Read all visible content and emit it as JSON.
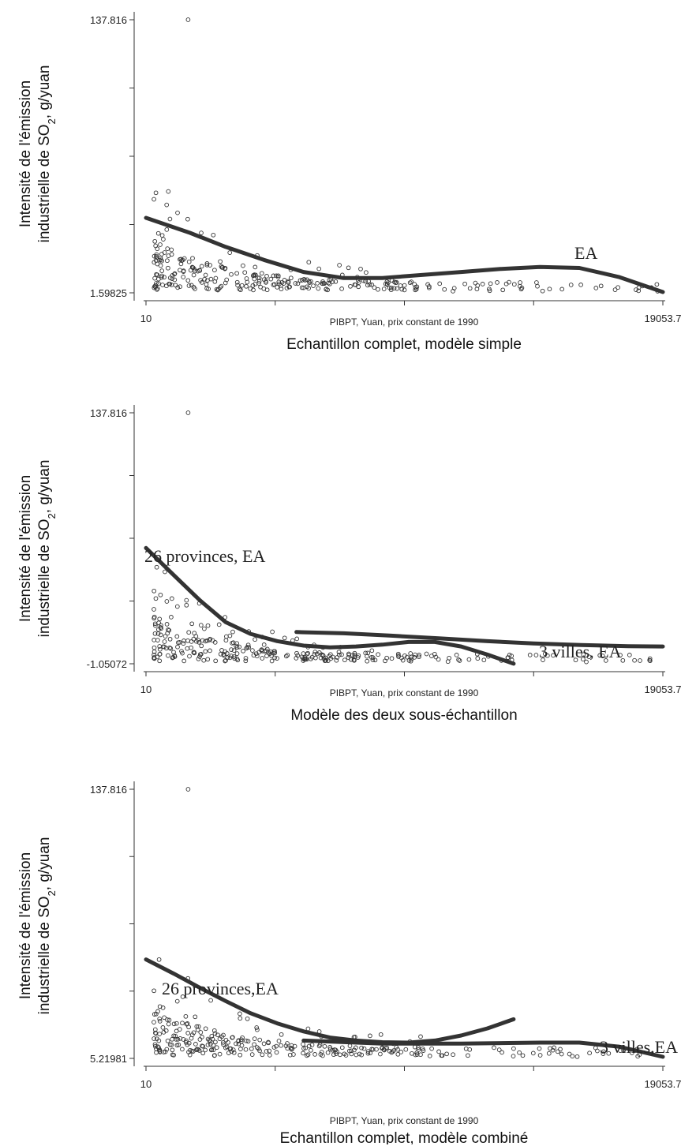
{
  "chart_data": [
    {
      "type": "scatter",
      "title": "Echantillon complet, modèle simple",
      "xlabel": "PIBPT, Yuan, prix constant de 1990",
      "ylabel": [
        "Intensité de l'émission",
        "industrielle de SO2, g/yuan"
      ],
      "xlim": [
        10,
        19053.7
      ],
      "ylim": [
        1.59825,
        137.816
      ],
      "x_tick_labels": [
        "10",
        "19053.7"
      ],
      "y_tick_labels": [
        "137.816",
        "1.59825"
      ],
      "grid": false,
      "series": [
        {
          "name": "EA",
          "type": "line",
          "x": [
            10,
            19,
            32,
            56,
            100,
            178,
            316,
            562,
            1000,
            1778,
            3162,
            5623,
            10000,
            19054
          ],
          "y": [
            39.0,
            31.5,
            24.5,
            18.0,
            12.0,
            9.0,
            9.0,
            10.5,
            12.0,
            13.5,
            14.5,
            14.0,
            9.5,
            2.0
          ]
        }
      ]
    },
    {
      "type": "scatter",
      "title": "Modèle des deux sous-échantillon",
      "xlabel": "PIBPT, Yuan, prix constant de 1990",
      "ylabel": [
        "Intensité de l'émission",
        "industrielle de SO2, g/yuan"
      ],
      "xlim": [
        10,
        19053.7
      ],
      "ylim": [
        -1.05072,
        137.816
      ],
      "x_tick_labels": [
        "10",
        "19053.7"
      ],
      "y_tick_labels": [
        "137.816",
        "-1.05072"
      ],
      "grid": false,
      "series": [
        {
          "name": "26 provinces, EA",
          "type": "line",
          "x": [
            10,
            15,
            22,
            32,
            46,
            68,
            100,
            147,
            215,
            316,
            464,
            681,
            1000,
            1468,
            2154
          ],
          "y": [
            63.0,
            48.0,
            34.0,
            22.0,
            15.5,
            11.5,
            9.0,
            8.0,
            8.5,
            9.5,
            11.0,
            11.0,
            8.5,
            4.0,
            -1.0
          ]
        },
        {
          "name": "3 villes, EA",
          "type": "line",
          "x": [
            90,
            180,
            360,
            720,
            1440,
            2880,
            5760,
            11500,
            19054
          ],
          "y": [
            16.5,
            15.8,
            14.5,
            13.0,
            11.5,
            10.2,
            9.3,
            8.7,
            8.5
          ]
        }
      ]
    },
    {
      "type": "scatter",
      "title": "Echantillon complet, modèle combiné",
      "xlabel": "PIBPT, Yuan, prix constant de 1990",
      "ylabel": [
        "Intensité de l'émission",
        "industrielle de SO2, g/yuan"
      ],
      "xlim": [
        10,
        19053.7
      ],
      "ylim": [
        5.21981,
        137.816
      ],
      "x_tick_labels": [
        "10",
        "19053.7"
      ],
      "y_tick_labels": [
        "137.816",
        "5.21981"
      ],
      "grid": false,
      "series": [
        {
          "name": "26 provinces,EA",
          "type": "line",
          "x": [
            10,
            15,
            22,
            32,
            46,
            68,
            100,
            147,
            215,
            316,
            464,
            681,
            1000,
            1468,
            2154
          ],
          "y": [
            54.0,
            47.0,
            40.0,
            33.5,
            27.5,
            22.5,
            18.5,
            15.5,
            14.0,
            13.2,
            13.0,
            14.0,
            16.5,
            20.0,
            24.5
          ]
        },
        {
          "name": "3 villes,EA",
          "type": "line",
          "x": [
            100,
            316,
            1000,
            3162,
            5623,
            10000,
            19054
          ],
          "y": [
            14.0,
            12.5,
            12.5,
            13.0,
            13.0,
            11.0,
            6.0
          ]
        }
      ]
    }
  ]
}
